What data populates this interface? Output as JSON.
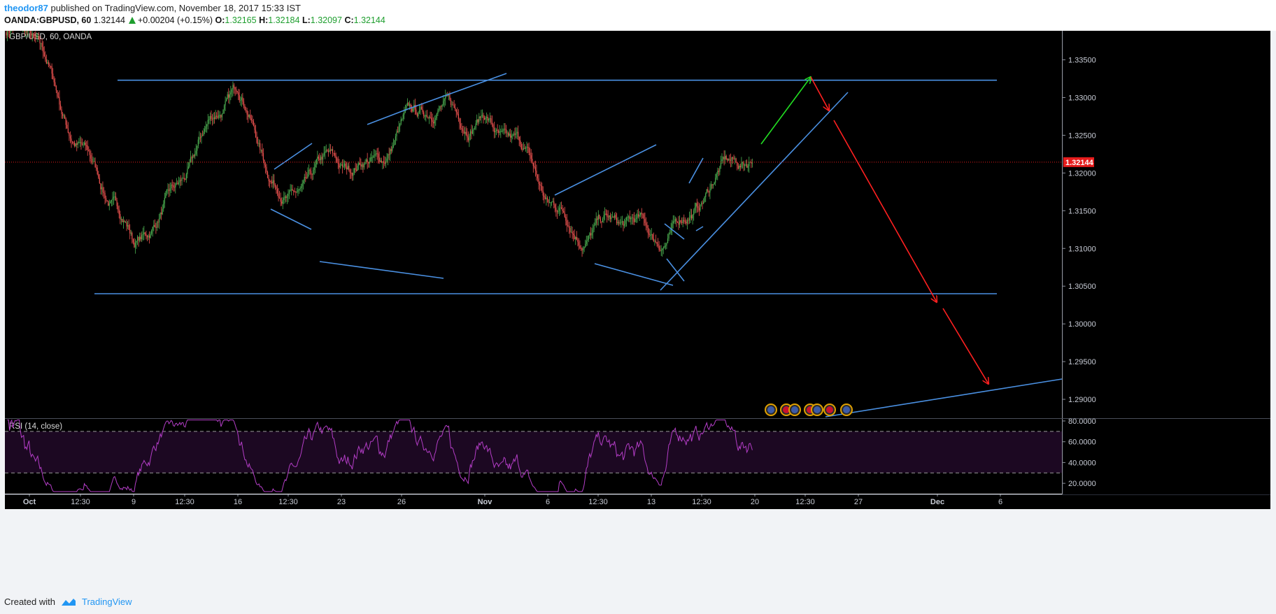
{
  "header": {
    "author": "theodor87",
    "published_text": "published on TradingView.com, November 18, 2017 15:33 IST",
    "symbol_interval": "OANDA:GBPUSD, 60",
    "last": "1.32144",
    "change": "+0.00204 (+0.15%)",
    "o_label": "O:",
    "o": "1.32165",
    "h_label": "H:",
    "h": "1.32184",
    "l_label": "L:",
    "l": "1.32097",
    "c_label": "C:",
    "c": "1.32144"
  },
  "footer": {
    "created": "Created with",
    "brand": "TradingView"
  },
  "colors": {
    "background": "#000000",
    "bull": "#4caf50",
    "bear": "#ef5350",
    "drawing_blue": "#4a90e2",
    "arrow_green": "#22dd22",
    "arrow_red": "#ff2020",
    "rsi": "#b33dc6",
    "rsi_band": "#1c0822",
    "last_price_tag": "#e61c1c"
  },
  "chart_data": {
    "type": "candlestick",
    "title": "GBP/USD, 60, OANDA",
    "current_price": 1.32144,
    "current_price_label": "1.32144",
    "ylim": [
      1.2875,
      1.3395
    ],
    "y_ticks": [
      "1.33500",
      "1.33000",
      "1.32500",
      "1.32000",
      "1.31500",
      "1.31000",
      "1.30500",
      "1.30000",
      "1.29500",
      "1.29000"
    ],
    "x_ticks": [
      "Oct",
      "12:30",
      "9",
      "12:30",
      "16",
      "12:30",
      "23",
      "26",
      "Nov",
      "6",
      "12:30",
      "13",
      "12:30",
      "20",
      "12:30",
      "27",
      "Dec",
      "6"
    ],
    "price_anchors_x": [
      "Oct",
      "12:30",
      "9",
      "12:30",
      "16",
      "12:30",
      "23",
      "26",
      "Nov",
      "6",
      "12:30",
      "13",
      "12:30",
      "20"
    ],
    "price_anchors_close": [
      1.3375,
      1.325,
      1.309,
      1.321,
      1.33,
      1.3175,
      1.3195,
      1.326,
      1.329,
      1.3155,
      1.3135,
      1.3105,
      1.3175,
      1.3214
    ],
    "key_levels": {
      "resistance": 1.3323,
      "support": 1.304
    },
    "projected_path": [
      "1.3323",
      "1.3040",
      "1.2945"
    ],
    "rsi": {
      "label": "RSI (14, close)",
      "upper_band": 70,
      "lower_band": 30,
      "ylim": [
        10,
        82
      ],
      "y_ticks": [
        "80.0000",
        "60.0000",
        "40.0000",
        "20.0000"
      ],
      "last": 52
    }
  }
}
